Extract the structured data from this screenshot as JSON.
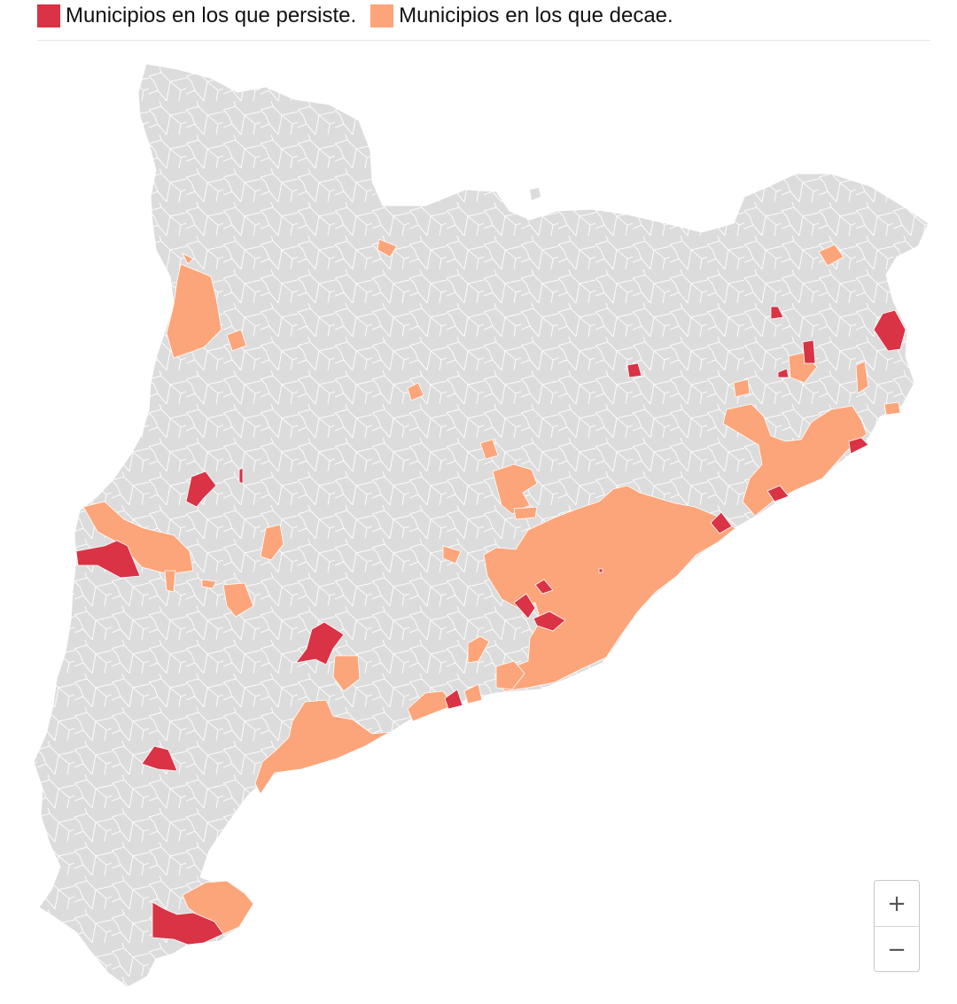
{
  "legend": {
    "items": [
      {
        "label": "Municipios en los que persiste.",
        "color": "#d93345"
      },
      {
        "label": "Municipios en los que decae.",
        "color": "#fca57a"
      }
    ]
  },
  "map": {
    "land_color": "#dcdcdc",
    "border_color": "#ffffff"
  },
  "zoom": {
    "in_label": "+",
    "out_label": "−"
  }
}
